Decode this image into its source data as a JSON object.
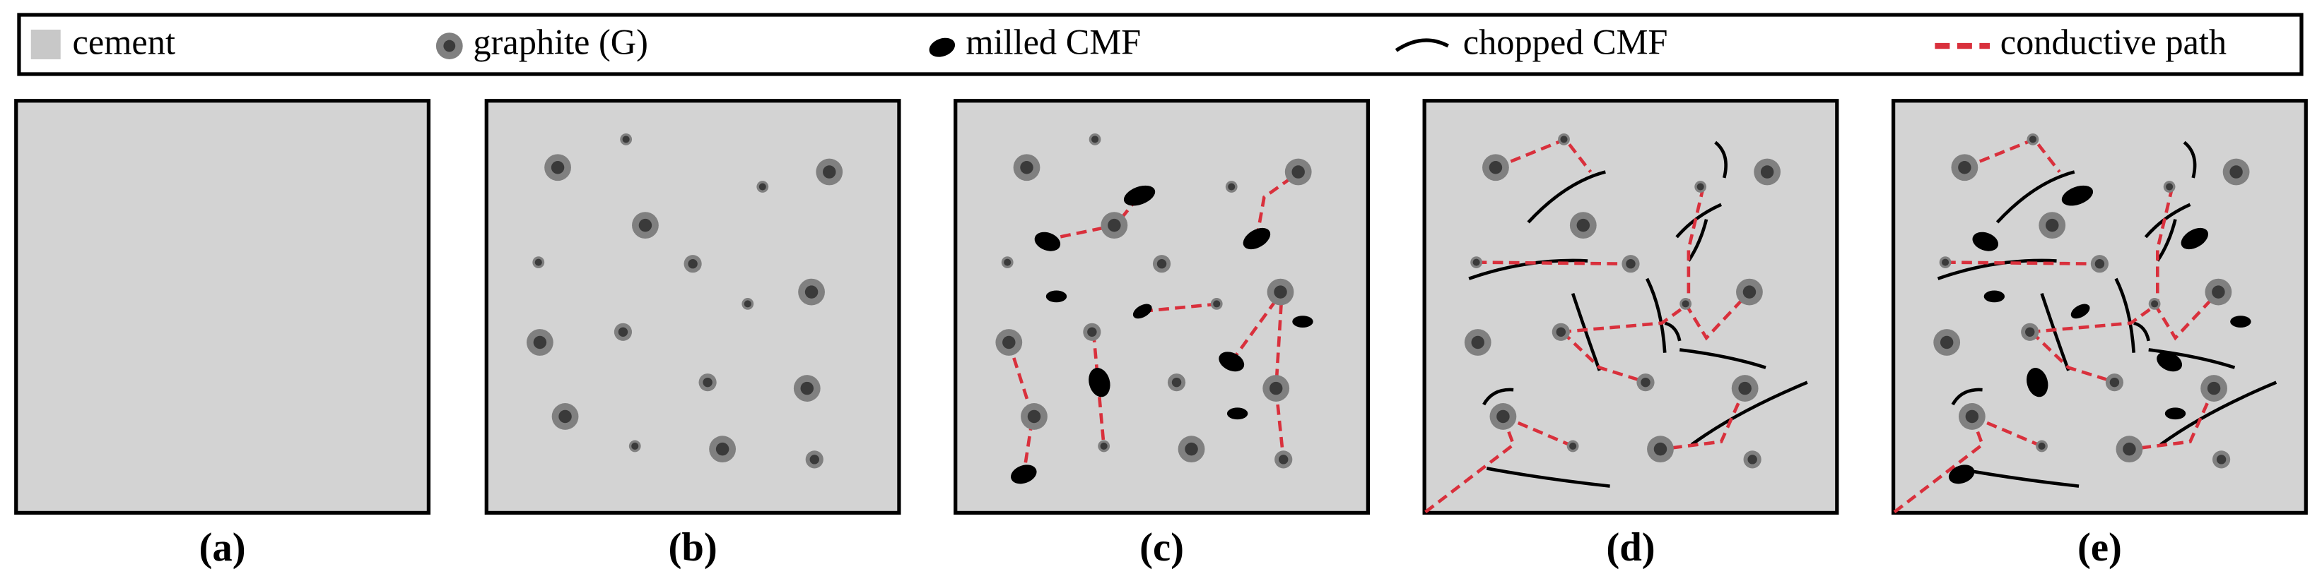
{
  "legend": {
    "items": [
      "cement",
      "graphite (G)",
      "milled CMF",
      "chopped CMF",
      "conductive path"
    ]
  },
  "panels": {
    "labels": [
      "(a)",
      "(b)",
      "(c)",
      "(d)",
      "(e)"
    ]
  }
}
